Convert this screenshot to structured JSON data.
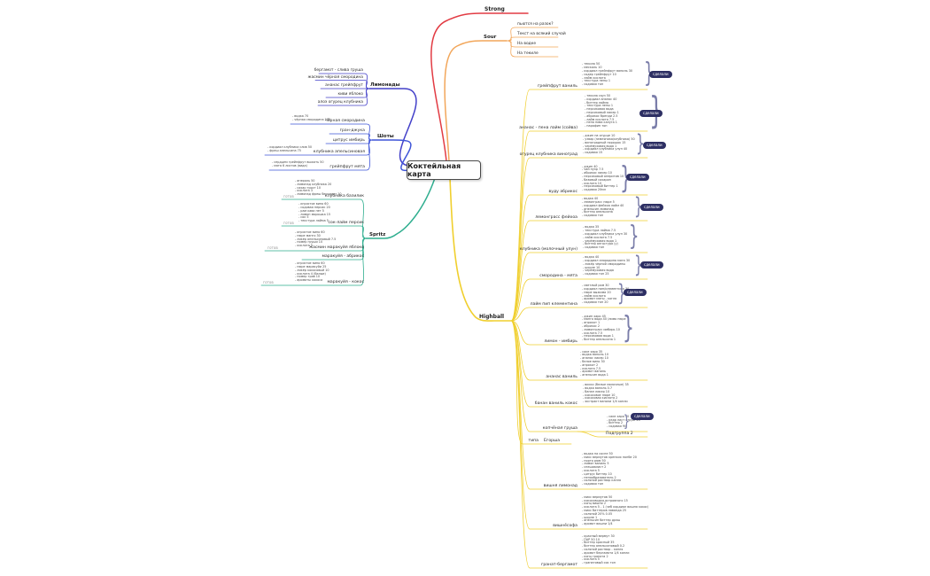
{
  "title": "Коктейльная карта",
  "badge": "сделали",
  "colors": {
    "strong": "#e23b43",
    "sour": "#f2a65a",
    "lemonades": "#4340c9",
    "shots": "#3f55d8",
    "spritz": "#2fae8f",
    "highball": "#f0cf2e",
    "badge_bg": "#2d2f63"
  },
  "branches": {
    "strong": {
      "label": "Strong"
    },
    "sour": {
      "label": "Sour",
      "children": [
        {
          "label": "пьются на разок?"
        },
        {
          "label": "Текст на всякий случай"
        },
        {
          "label": "На водке"
        },
        {
          "label": "На текиле"
        }
      ]
    },
    "lemonades": {
      "label": "Лимонады",
      "children": [
        {
          "label": "бергамот - слива груша"
        },
        {
          "label": "жасмин чёрная смородина"
        },
        {
          "label": "ананас грейпфрут"
        },
        {
          "label": "киви яблоко"
        },
        {
          "label": "алоэ огурец клубника"
        }
      ]
    },
    "shots": {
      "label": "Шоты",
      "children": [
        {
          "label": "чёрная смородина",
          "recipe": [
            "водка 70",
            "чёрная смородина 200"
          ]
        },
        {
          "label": "гран-джука"
        },
        {
          "label": "цитрус имбирь"
        },
        {
          "label": "клубника апельсиновая",
          "recipe": [
            "кордиал клубника слив 50",
            "фреш апельсина 75"
          ]
        },
        {
          "label": "грейпфрут мята",
          "recipe": [
            "сердцем грейпфрут выжать 50",
            "мята 6 листов (вида)"
          ]
        }
      ]
    },
    "spritz": {
      "label": "Spritz",
      "children": [
        {
          "label": "клубника базилик",
          "status": "готов",
          "recipe": [
            "апероль 50",
            "лимонад клубника 20",
            "сахар трост 10",
            "кислота 3",
            "лимонад фреш бергамот 10"
          ]
        },
        {
          "label": "сок-лайм персик",
          "status": "готов",
          "recipe": [
            "игристое вино 60",
            "содовая персик 20",
            "рам кава пет 5",
            "лимон морошка 15",
            "сок 5",
            "текстура лайма 5"
          ]
        },
        {
          "label": "жасмин маракуйя яблоко",
          "status": "готов",
          "recipe": [
            "игристое вино 60",
            "пюре манго 30",
            "ликёр апельсиновый 7.5",
            "номер груши 10",
            "кислота 5"
          ]
        },
        {
          "label": "маракуйя - абрикос"
        },
        {
          "label": "маракуйя - кокос",
          "status": "готов",
          "recipe": [
            "игристое вино 60",
            "пюре маракуйи 25",
            "ликёр кокосовый 10",
            "кислота 4 (белые)",
            "номер трав 10",
            "ароматы кокоса"
          ]
        }
      ]
    },
    "highball": {
      "label": "Highball",
      "children": [
        {
          "label": "грейпфрут ваниль",
          "done": true,
          "recipe": [
            "текила 50",
            "мескаль 10",
            "кордиал грейпфрут ваниль 30",
            "содер грейпфрут 10",
            "лайм кислота",
            "текстура пены 1",
            "содовая топ"
          ]
        },
        {
          "label": "ананас - пена лайм (сойва)",
          "done": true,
          "recipe": [
            "текила сауз 50",
            "кордиал ананас 40",
            "биттер лайма",
            "текстура пены 1",
            "персиковая вода",
            "персиковый ликер 1",
            "абрикос бренди 2.5",
            "лайм кислота 7.5",
            "пена пива калуга 1",
            "парафин топ"
          ]
        },
        {
          "label": "огурец клубника виноград",
          "done": true,
          "recipe": [
            "джин на огурце 10",
            "узвар (земляника/клубника) 50",
            "виноградный порошок 15",
            "черёмуховая вода 1",
            "кордиал клубника улун 40",
            "содовая 15"
          ]
        },
        {
          "label": "вуду абрикос",
          "done": true,
          "recipe": [
            "джин 40",
            "чай пуэр 7.5",
            "абрикос ликер 10",
            "персиковый аперитив 10",
            "базовый сахарин",
            "кислота 10",
            "персиковый биттер 1",
            "содовая 20мл"
          ]
        },
        {
          "label": "лемонграсс фейхоа",
          "done": true,
          "recipe": [
            "водка 40",
            "лемонграсс пюре 5",
            "кордиал фейхоа лайм 40",
            "апельсин лимонад",
            "биттер апельсина",
            "содовая топ"
          ]
        },
        {
          "label": "клубника (молочный улун)",
          "recipe": [
            "водка 35",
            "текстура лайма 7.5",
            "кордиал клубника улун 30",
            "лайм кислота 7.5",
            "черёмуховая вода 1",
            "биттер ангостура (у)",
            "содовая топ"
          ]
        },
        {
          "label": "смородина - мята",
          "done": true,
          "recipe": [
            "водка 40",
            "кордиал смородина мята 30",
            "ликёр чёрной смородины",
            "шорле 10",
            "черёмуховая вода",
            "содовая топ 25"
          ]
        },
        {
          "label": "лайм пип клементина",
          "done": true,
          "recipe": [
            "светлый ром 30",
            "кордиал пип/клементина 30",
            "пюре выжима 20",
            "лайм кислота",
            "аромат мяты - когля",
            "содовая топ 20"
          ]
        },
        {
          "label": "лимон - имбирь",
          "recipe": [
            "джин харо 45",
            "манго вода 40 /лимо пюре",
            "апрокот 1",
            "абрикос 2",
            "лимонграсс имбирь 10",
            "кислота 7.5",
            "персиковая вода 1",
            "биттер апельсина 1"
          ]
        },
        {
          "label": "ананас ваниль",
          "recipe": [
            "саке харо 35",
            "водка ваниль 10",
            "ананас ликер 10",
            "белое вино 30",
            "апрокот 2",
            "кислота 7.5",
            "аромат ваниль",
            "апельсин вода 1"
          ]
        },
        {
          "label": "банан ваниль кокос",
          "recipe": [
            "виски (белые молочные) 35",
            "водка ваниль 0.7",
            "банан ликер 10",
            "кокосовое пюре 10",
            "кокосовая кислота 2",
            "экстракт ванили 1/4 капли"
          ]
        },
        {
          "label": "копчёная груша",
          "done": true,
          "sub": "Подгруппа 2",
          "recipe": [
            "саке харо 40",
            "кедр лист струж 40",
            "биттер 2",
            "содовая 90"
          ]
        },
        {
          "label": "Егорша",
          "note": "типа"
        },
        {
          "label": "вишня лимонад",
          "recipe": [
            "водка на сосне 50",
            "микс вермутов крепких понбе 20",
            "порто рюм 50",
            "лимон ваниль 5",
            "спешиалист 2",
            "кислота 5",
            "цитрус биттер 10",
            "пенообразователь 2",
            "соляной раствор капля",
            "содовая топ"
          ]
        },
        {
          "label": "вишнёсофа",
          "recipe": [
            "микс вермутов 50",
            "кокосоводка островного 15",
            "конц вишни 2",
            "кислота 5 - 1 (чеб кордиал вишня кокос)",
            "микс биттеров лаванда 25",
            "соляной 20% 0.05",
            "шорле 1",
            "апельсин биттер дрэш",
            "аромат вишни 1/4"
          ]
        },
        {
          "label": "гранат-бергамот",
          "recipe": [
            "красный вермут 30",
            "ПАР 50 10",
            "биттер красный 35",
            "биттер апельсиновый 0.2",
            "соляной раствор - капля",
            "аромат бергамота 1/4 капли",
            "конц граната 2",
            "кислота 5",
            "гранатовый сок топ"
          ]
        }
      ]
    }
  }
}
